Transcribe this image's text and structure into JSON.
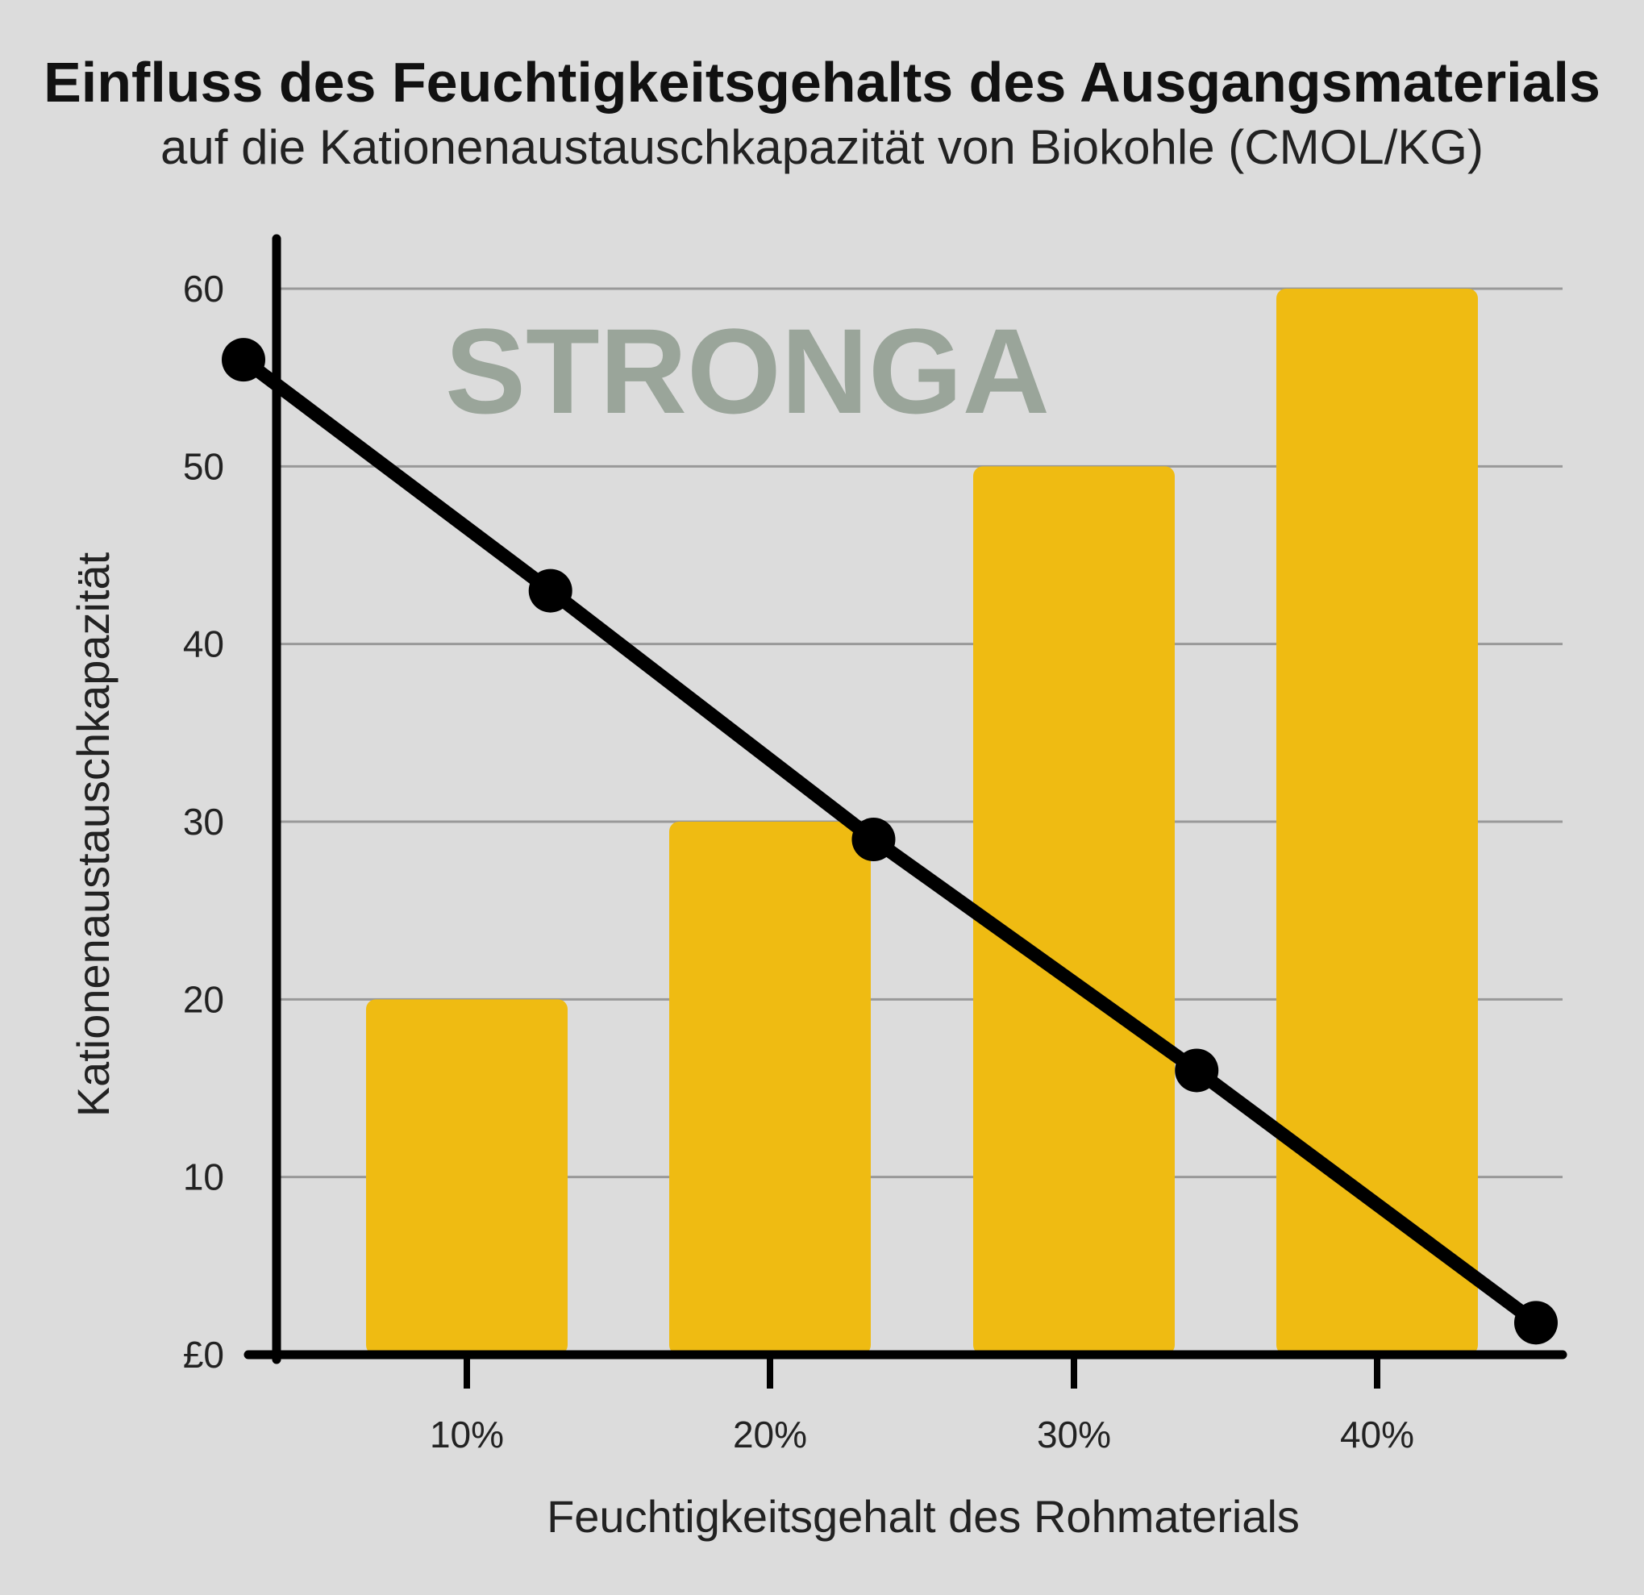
{
  "title": "Einfluss des Feuchtigkeitsgehalts des Ausgangsmaterials",
  "subtitle": "auf die Kationenaustauschkapazität von Biokohle (CMOL/KG)",
  "watermark": "STRONGA",
  "colors": {
    "background": "#dcdcdc",
    "bar": "#efbb12",
    "line": "#000000",
    "grid": "#999999",
    "watermark": "#9aa59a"
  },
  "chart_data": {
    "type": "bar",
    "categories": [
      "10%",
      "20%",
      "30%",
      "40%"
    ],
    "values": [
      20,
      30,
      50,
      60
    ],
    "ylim": [
      0,
      60
    ],
    "yticks": [
      "£0",
      "10",
      "20",
      "30",
      "40",
      "50",
      "60"
    ],
    "ytick_values": [
      0,
      10,
      20,
      30,
      40,
      50,
      60
    ],
    "xlabel": "Feuchtigkeitsgehalt des Rohmaterials",
    "ylabel": "Kationenaustauschkapazität",
    "grid": true,
    "line_overlay": {
      "type": "line",
      "x": [
        5,
        14.5,
        24.5,
        34.5,
        45
      ],
      "y": [
        56,
        43,
        29,
        16,
        1.8
      ]
    }
  }
}
